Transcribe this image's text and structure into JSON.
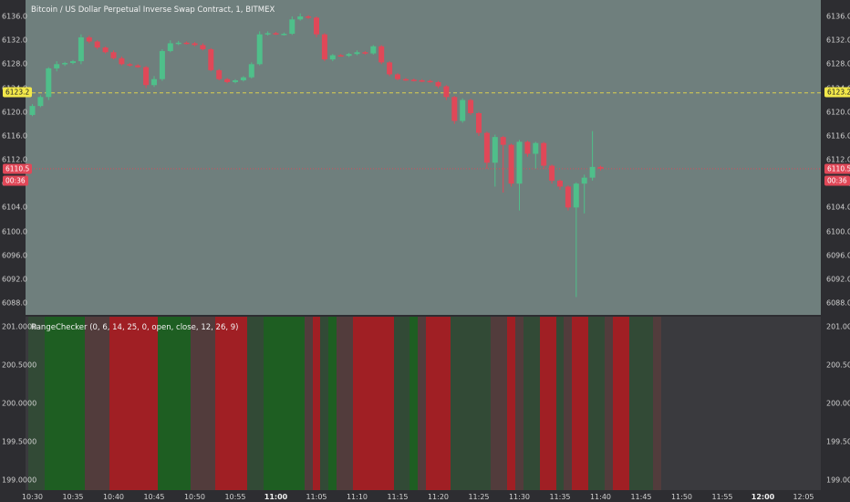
{
  "header": {
    "title": "Bitcoin / US Dollar Perpetual Inverse Swap Contract, 1, BITMEX",
    "indicator_title": "RangeChecker (0, 6, 14, 25, 0, open, close, 12, 26, 9)"
  },
  "colors": {
    "up": "#4fbf8a",
    "down": "#e04858",
    "pane_bg": "#6f7f7d",
    "band_green": "#1e5e22",
    "band_red": "#a01f24",
    "band_dark_green": "#324a36",
    "band_dark_red": "#523c3c",
    "band_neutral": "#3a3a3e"
  },
  "badges": {
    "last_price": "6123.2",
    "current_price": "6110.5",
    "countdown": "00:36"
  },
  "chart_data": [
    {
      "type": "candlestick",
      "ylim": [
        6086.0,
        6138.0
      ],
      "y_ticks": [
        "6136.0",
        "6132.0",
        "6128.0",
        "6124.0",
        "6120.0",
        "6116.0",
        "6112.0",
        "6108.0",
        "6104.0",
        "6100.0",
        "6096.0",
        "6092.0",
        "6088.0"
      ],
      "y_tick_values": [
        6136,
        6132,
        6128,
        6124,
        6120,
        6116,
        6112,
        6108,
        6104,
        6100,
        6096,
        6092,
        6088
      ],
      "x_ticks": [
        {
          "label": "10:30",
          "min": 0,
          "bold": false
        },
        {
          "label": "10:35",
          "min": 5,
          "bold": false
        },
        {
          "label": "10:40",
          "min": 10,
          "bold": false
        },
        {
          "label": "10:45",
          "min": 15,
          "bold": false
        },
        {
          "label": "10:50",
          "min": 20,
          "bold": false
        },
        {
          "label": "10:55",
          "min": 25,
          "bold": false
        },
        {
          "label": "11:00",
          "min": 30,
          "bold": true
        },
        {
          "label": "11:05",
          "min": 35,
          "bold": false
        },
        {
          "label": "11:10",
          "min": 40,
          "bold": false
        },
        {
          "label": "11:15",
          "min": 45,
          "bold": false
        },
        {
          "label": "11:20",
          "min": 50,
          "bold": false
        },
        {
          "label": "11:25",
          "min": 55,
          "bold": false
        },
        {
          "label": "11:30",
          "min": 60,
          "bold": false
        },
        {
          "label": "11:35",
          "min": 65,
          "bold": false
        },
        {
          "label": "11:40",
          "min": 70,
          "bold": false
        },
        {
          "label": "11:45",
          "min": 75,
          "bold": false
        },
        {
          "label": "11:50",
          "min": 80,
          "bold": false
        },
        {
          "label": "11:55",
          "min": 85,
          "bold": false
        },
        {
          "label": "12:00",
          "min": 90,
          "bold": true
        },
        {
          "label": "12:05",
          "min": 95,
          "bold": false
        }
      ],
      "reference_lines": [
        {
          "value": 6123.2,
          "style": "dashed",
          "color": "#e8d84a"
        },
        {
          "value": 6110.5,
          "style": "dotted",
          "color": "#e04858"
        }
      ],
      "candles": [
        [
          6119.5,
          6121.3,
          6119.3,
          6121.0
        ],
        [
          6121.0,
          6122.8,
          6120.8,
          6122.5
        ],
        [
          6122.5,
          6127.5,
          6122.0,
          6127.3
        ],
        [
          6127.3,
          6128.5,
          6126.8,
          6128.0
        ],
        [
          6128.0,
          6128.4,
          6127.7,
          6128.2
        ],
        [
          6128.2,
          6128.7,
          6128.0,
          6128.5
        ],
        [
          6128.5,
          6133.0,
          6128.0,
          6132.5
        ],
        [
          6132.5,
          6132.8,
          6131.5,
          6131.8
        ],
        [
          6131.8,
          6132.0,
          6130.5,
          6130.8
        ],
        [
          6130.8,
          6131.0,
          6129.8,
          6130.0
        ],
        [
          6130.0,
          6130.3,
          6128.8,
          6129.0
        ],
        [
          6129.0,
          6129.3,
          6127.8,
          6128.0
        ],
        [
          6128.0,
          6128.2,
          6127.6,
          6127.8
        ],
        [
          6127.8,
          6128.0,
          6127.4,
          6127.5
        ],
        [
          6127.5,
          6127.7,
          6124.0,
          6124.5
        ],
        [
          6124.5,
          6126.0,
          6124.2,
          6125.5
        ],
        [
          6125.5,
          6130.5,
          6125.2,
          6130.2
        ],
        [
          6130.2,
          6132.0,
          6130.0,
          6131.5
        ],
        [
          6131.5,
          6131.9,
          6131.2,
          6131.6
        ],
        [
          6131.6,
          6131.8,
          6131.3,
          6131.5
        ],
        [
          6131.5,
          6131.7,
          6131.0,
          6131.2
        ],
        [
          6131.2,
          6131.5,
          6130.3,
          6130.5
        ],
        [
          6130.5,
          6130.7,
          6126.8,
          6127.0
        ],
        [
          6127.0,
          6127.2,
          6125.3,
          6125.5
        ],
        [
          6125.5,
          6125.7,
          6124.8,
          6125.0
        ],
        [
          6125.0,
          6125.5,
          6124.8,
          6125.3
        ],
        [
          6125.3,
          6126.0,
          6125.1,
          6125.8
        ],
        [
          6125.8,
          6128.3,
          6125.6,
          6128.0
        ],
        [
          6128.0,
          6133.5,
          6127.8,
          6133.0
        ],
        [
          6133.0,
          6133.5,
          6132.8,
          6133.2
        ],
        [
          6133.2,
          6133.4,
          6132.9,
          6133.0
        ],
        [
          6133.0,
          6133.3,
          6132.8,
          6133.1
        ],
        [
          6133.1,
          6136.0,
          6132.9,
          6135.5
        ],
        [
          6135.5,
          6136.5,
          6135.3,
          6136.0
        ],
        [
          6136.0,
          6136.2,
          6135.6,
          6135.8
        ],
        [
          6135.8,
          6136.0,
          6132.5,
          6133.0
        ],
        [
          6133.0,
          6133.2,
          6128.5,
          6128.8
        ],
        [
          6128.8,
          6129.7,
          6128.5,
          6129.5
        ],
        [
          6129.5,
          6129.7,
          6129.3,
          6129.4
        ],
        [
          6129.4,
          6129.9,
          6129.2,
          6129.7
        ],
        [
          6129.7,
          6130.3,
          6129.5,
          6130.0
        ],
        [
          6130.0,
          6130.2,
          6129.6,
          6129.8
        ],
        [
          6129.8,
          6131.2,
          6129.6,
          6131.0
        ],
        [
          6131.0,
          6131.2,
          6128.0,
          6128.3
        ],
        [
          6128.3,
          6128.5,
          6126.0,
          6126.3
        ],
        [
          6126.3,
          6126.5,
          6125.3,
          6125.5
        ],
        [
          6125.5,
          6125.7,
          6125.2,
          6125.4
        ],
        [
          6125.4,
          6125.6,
          6125.1,
          6125.3
        ],
        [
          6125.3,
          6125.5,
          6125.0,
          6125.2
        ],
        [
          6125.2,
          6125.4,
          6124.9,
          6125.0
        ],
        [
          6125.0,
          6125.2,
          6124.0,
          6124.3
        ],
        [
          6124.3,
          6124.5,
          6122.0,
          6122.5
        ],
        [
          6122.5,
          6122.7,
          6118.0,
          6118.5
        ],
        [
          6118.5,
          6122.3,
          6118.2,
          6122.0
        ],
        [
          6122.0,
          6122.2,
          6119.5,
          6119.8
        ],
        [
          6119.8,
          6120.0,
          6116.0,
          6116.5
        ],
        [
          6116.5,
          6116.7,
          6110.5,
          6111.5
        ],
        [
          6111.5,
          6116.2,
          6107.5,
          6115.8
        ],
        [
          6115.8,
          6116.0,
          6106.5,
          6114.5
        ],
        [
          6114.5,
          6114.7,
          6107.5,
          6108.0
        ],
        [
          6108.0,
          6115.3,
          6103.5,
          6115.0
        ],
        [
          6115.0,
          6115.2,
          6112.5,
          6113.0
        ],
        [
          6113.0,
          6115.0,
          6110.5,
          6114.8
        ],
        [
          6114.8,
          6115.0,
          6110.5,
          6111.0
        ],
        [
          6111.0,
          6111.2,
          6108.0,
          6108.5
        ],
        [
          6108.5,
          6108.7,
          6107.0,
          6107.5
        ],
        [
          6107.5,
          6107.7,
          6103.5,
          6104.0
        ],
        [
          6104.0,
          6108.2,
          6089.0,
          6108.0
        ],
        [
          6108.0,
          6109.5,
          6103.0,
          6109.0
        ],
        [
          6109.0,
          6116.8,
          6108.5,
          6110.8
        ],
        [
          6110.8,
          6111.0,
          6110.2,
          6110.5
        ]
      ]
    },
    {
      "type": "bar",
      "title": "RangeChecker (0, 6, 14, 25, 0, open, close, 12, 26, 9)",
      "ylim": [
        198.9,
        201.1
      ],
      "y_ticks": [
        "201.0000",
        "200.5000",
        "200.0000",
        "199.5000",
        "199.0000"
      ],
      "y_tick_values": [
        201.0,
        200.5,
        200.0,
        199.5,
        199.0
      ],
      "segments": [
        {
          "start": 0,
          "end": 2,
          "color": "band_dark_green"
        },
        {
          "start": 2,
          "end": 7,
          "color": "band_green"
        },
        {
          "start": 7,
          "end": 10,
          "color": "band_dark_red"
        },
        {
          "start": 10,
          "end": 16,
          "color": "band_red"
        },
        {
          "start": 16,
          "end": 20,
          "color": "band_green"
        },
        {
          "start": 20,
          "end": 23,
          "color": "band_dark_red"
        },
        {
          "start": 23,
          "end": 27,
          "color": "band_red"
        },
        {
          "start": 27,
          "end": 29,
          "color": "band_dark_green"
        },
        {
          "start": 29,
          "end": 34,
          "color": "band_green"
        },
        {
          "start": 34,
          "end": 35,
          "color": "band_dark_red"
        },
        {
          "start": 35,
          "end": 36,
          "color": "band_red"
        },
        {
          "start": 36,
          "end": 37,
          "color": "band_dark_green"
        },
        {
          "start": 37,
          "end": 38,
          "color": "band_green"
        },
        {
          "start": 38,
          "end": 40,
          "color": "band_dark_red"
        },
        {
          "start": 40,
          "end": 45,
          "color": "band_red"
        },
        {
          "start": 45,
          "end": 47,
          "color": "band_dark_green"
        },
        {
          "start": 47,
          "end": 48,
          "color": "band_green"
        },
        {
          "start": 48,
          "end": 49,
          "color": "band_dark_red"
        },
        {
          "start": 49,
          "end": 52,
          "color": "band_red"
        },
        {
          "start": 52,
          "end": 57,
          "color": "band_dark_green"
        },
        {
          "start": 57,
          "end": 59,
          "color": "band_dark_red"
        },
        {
          "start": 59,
          "end": 60,
          "color": "band_red"
        },
        {
          "start": 60,
          "end": 61,
          "color": "band_dark_red"
        },
        {
          "start": 61,
          "end": 63,
          "color": "band_dark_green"
        },
        {
          "start": 63,
          "end": 65,
          "color": "band_red"
        },
        {
          "start": 65,
          "end": 66,
          "color": "band_dark_green"
        },
        {
          "start": 66,
          "end": 67,
          "color": "band_dark_red"
        },
        {
          "start": 67,
          "end": 69,
          "color": "band_red"
        },
        {
          "start": 69,
          "end": 71,
          "color": "band_dark_green"
        },
        {
          "start": 71,
          "end": 72,
          "color": "band_dark_red"
        },
        {
          "start": 72,
          "end": 74,
          "color": "band_red"
        },
        {
          "start": 74,
          "end": 77,
          "color": "band_dark_green"
        },
        {
          "start": 77,
          "end": 78,
          "color": "band_dark_red"
        }
      ]
    }
  ]
}
